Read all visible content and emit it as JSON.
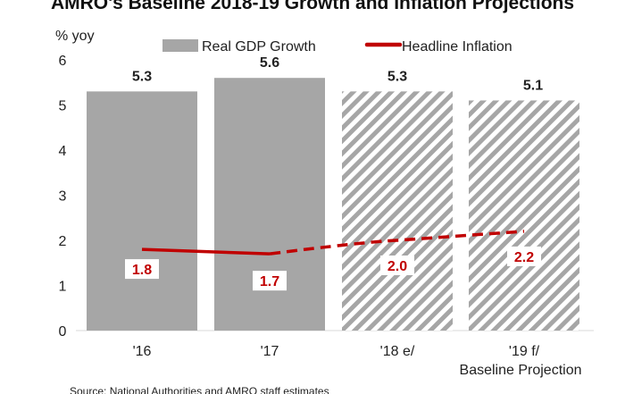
{
  "chart_data": {
    "type": "bar",
    "title": "AMRO's Baseline 2018-19 Growth and Inflation Projections",
    "ylabel": "% yoy",
    "ylim": [
      0,
      6
    ],
    "yticks": [
      0,
      1,
      2,
      3,
      4,
      5,
      6
    ],
    "categories": [
      "'16",
      "'17",
      "'18 e/",
      "'19 f/"
    ],
    "category_note": "Baseline Projection",
    "series": [
      {
        "name": "Real GDP Growth",
        "type": "bar",
        "values": [
          5.3,
          5.6,
          5.3,
          5.1
        ],
        "labels": [
          "5.3",
          "5.6",
          "5.3",
          "5.1"
        ],
        "projected": [
          false,
          false,
          true,
          true
        ],
        "color": "#a6a6a6"
      },
      {
        "name": "Headline Inflation",
        "type": "line",
        "values": [
          1.8,
          1.7,
          2.0,
          2.2
        ],
        "labels": [
          "1.8",
          "1.7",
          "2.0",
          "2.2"
        ],
        "projected": [
          false,
          false,
          true,
          true
        ],
        "color": "#c00000"
      }
    ],
    "legend": "top",
    "grid": false,
    "source": "Source: National Authorities and AMRO staff estimates"
  }
}
